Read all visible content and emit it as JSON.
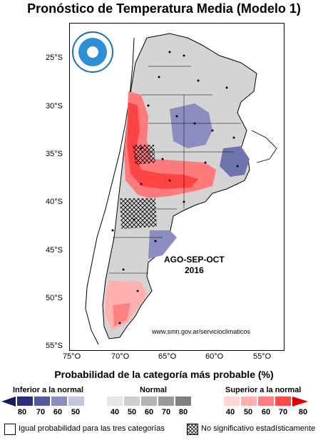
{
  "title": "Pronóstico de Temperatura Media (Modelo 1)",
  "lat_ticks": [
    "25°S",
    "30°S",
    "35°S",
    "40°S",
    "45°S",
    "50°S",
    "55°S"
  ],
  "lon_ticks": [
    "75°O",
    "70°O",
    "65°O",
    "60°O",
    "55°O"
  ],
  "period_line1": "AGO-SEP-OCT",
  "period_line2": "2016",
  "url": "www.smn.gov.ar/servicioclimaticos",
  "legend": {
    "title": "Probabilidad de la categoría más probable (%)",
    "below_label": "Inferior a la normal",
    "normal_label": "Normal",
    "above_label": "Superior a la normal",
    "below_values": [
      "80",
      "70",
      "60",
      "50"
    ],
    "normal_values": [
      "40",
      "50",
      "60",
      "70",
      "80"
    ],
    "above_values": [
      "40",
      "50",
      "60",
      "70",
      "80"
    ],
    "below_colors": [
      "#2b2f7a",
      "#555a9e",
      "#8a8dbf",
      "#c4c5df"
    ],
    "normal_colors": [
      "#e6e6e6",
      "#cfcfcf",
      "#b3b3b3",
      "#999999",
      "#7f7f7f"
    ],
    "above_colors": [
      "#ffd6d6",
      "#ffb0b0",
      "#ff8080",
      "#ff4d4d",
      "#e00000"
    ],
    "equal_label": "Igual probabilidad para las tres categorías",
    "ns_label": "No significativo estadísticamente"
  }
}
